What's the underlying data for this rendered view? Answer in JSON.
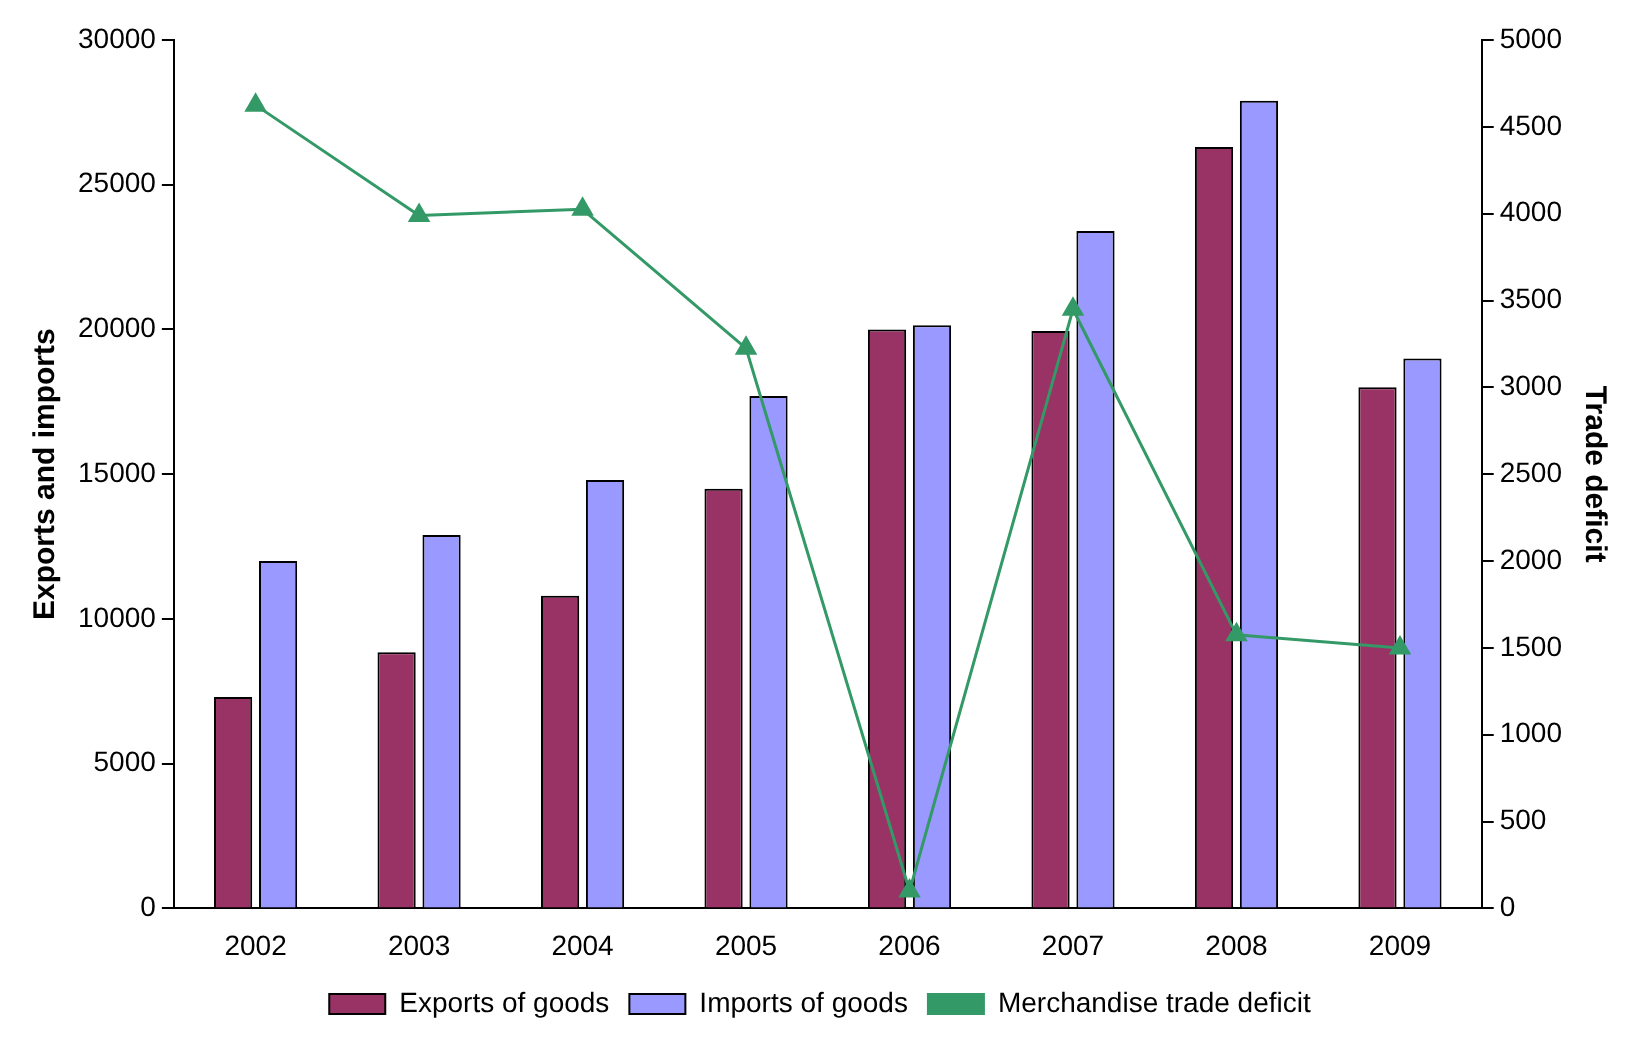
{
  "chart_data": {
    "type": "bar",
    "categories": [
      "2002",
      "2003",
      "2004",
      "2005",
      "2006",
      "2007",
      "2008",
      "2009"
    ],
    "ylabel": "Exports and imports",
    "y2label": "Trade deficit",
    "ylim": [
      0,
      30000
    ],
    "yticks": [
      0,
      5000,
      10000,
      15000,
      20000,
      25000,
      30000
    ],
    "y2lim": [
      0,
      5000
    ],
    "y2ticks": [
      0,
      500,
      1000,
      1500,
      2000,
      2500,
      3000,
      3500,
      4000,
      4500,
      5000
    ],
    "series": [
      {
        "name": "Exports of goods",
        "color": "#993366",
        "values": [
          7300,
          8850,
          10800,
          14500,
          20000,
          19950,
          26300,
          18000
        ]
      },
      {
        "name": "Imports of goods",
        "color": "#9999ff",
        "values": [
          12000,
          12900,
          14800,
          17700,
          20150,
          23400,
          27900,
          19000
        ]
      },
      {
        "name": "Merchandise trade deficit",
        "type": "line",
        "axis": "y2",
        "color": "#339966",
        "marker": "triangle",
        "values": [
          4625,
          3990,
          4025,
          3225,
          100,
          3450,
          1575,
          1500
        ]
      }
    ],
    "grid": false,
    "legend": "bottom"
  }
}
